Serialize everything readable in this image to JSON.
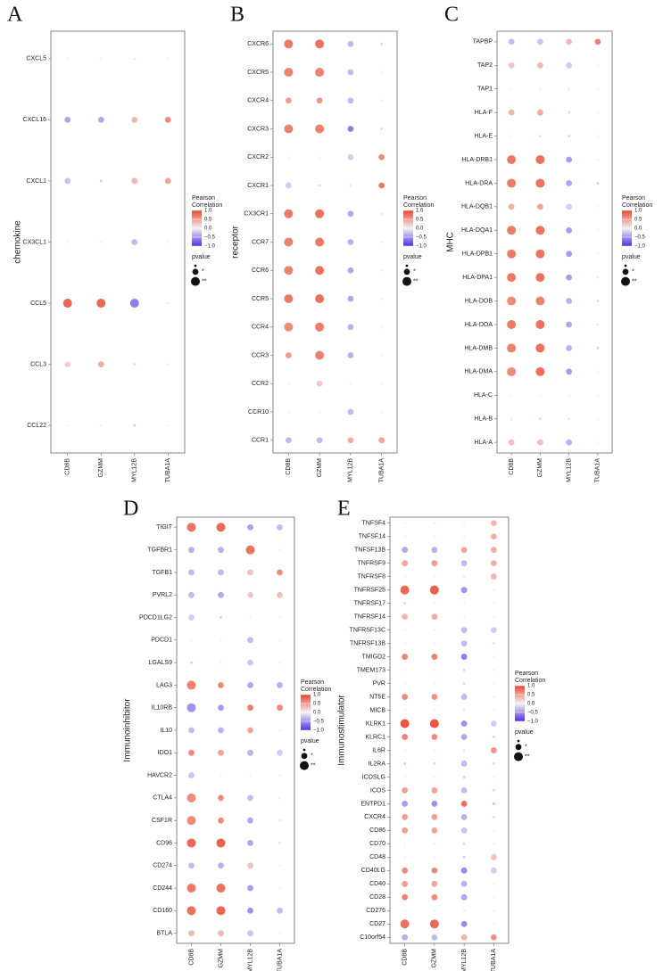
{
  "chart_data": [
    {
      "type": "dot",
      "panel_label": "A",
      "ylabel": "chemokine",
      "x": [
        "CD8B",
        "GZMM",
        "MYL12B",
        "TUBA1A"
      ],
      "categories": [
        "CXCL5",
        "CXCL16",
        "CXCL1",
        "CX3CL1",
        "CCL5",
        "CCL3",
        "CCL22"
      ],
      "values": [
        [
          0,
          0,
          0.05,
          0
        ],
        [
          -0.4,
          -0.4,
          0.35,
          0.6
        ],
        [
          -0.25,
          -0.2,
          0.35,
          0.45
        ],
        [
          0,
          0,
          -0.3,
          0
        ],
        [
          0.8,
          0.8,
          -0.6,
          -0.05
        ],
        [
          0.2,
          0.4,
          -0.15,
          -0.05
        ],
        [
          0,
          0,
          -0.2,
          0
        ]
      ],
      "sizes": [
        [
          0,
          0,
          0,
          0
        ],
        [
          1,
          1,
          1,
          1
        ],
        [
          1,
          0,
          1,
          1
        ],
        [
          0,
          0,
          1,
          0
        ],
        [
          2,
          2,
          2,
          0
        ],
        [
          1,
          1,
          0,
          0
        ],
        [
          0,
          0,
          0,
          0
        ]
      ]
    },
    {
      "type": "dot",
      "panel_label": "B",
      "ylabel": "receptor",
      "x": [
        "CD8B",
        "GZMM",
        "MYL12B",
        "TUBA1A"
      ],
      "categories": [
        "CXCR6",
        "CXCR5",
        "CXCR4",
        "CXCR3",
        "CXCR2",
        "CXCR1",
        "CX3CR1",
        "CCR7",
        "CCR6",
        "CCR5",
        "CCR4",
        "CCR3",
        "CCR2",
        "CCR10",
        "CCR1"
      ],
      "values": [
        [
          0.7,
          0.75,
          -0.3,
          -0.15
        ],
        [
          0.65,
          0.65,
          -0.3,
          0
        ],
        [
          0.5,
          0.55,
          -0.3,
          -0.05
        ],
        [
          0.65,
          0.65,
          -0.6,
          -0.15
        ],
        [
          0,
          0,
          -0.2,
          0.6
        ],
        [
          -0.2,
          -0.15,
          -0.05,
          0.7
        ],
        [
          0.7,
          0.75,
          -0.4,
          -0.05
        ],
        [
          0.65,
          0.7,
          -0.35,
          -0.05
        ],
        [
          0.65,
          0.75,
          -0.4,
          -0.05
        ],
        [
          0.7,
          0.75,
          -0.4,
          -0.05
        ],
        [
          0.6,
          0.7,
          -0.35,
          0
        ],
        [
          0.5,
          0.65,
          -0.35,
          0
        ],
        [
          0,
          0.25,
          0,
          0
        ],
        [
          0,
          0,
          -0.3,
          0
        ],
        [
          -0.3,
          -0.3,
          0.4,
          0.45
        ]
      ],
      "sizes": [
        [
          2,
          2,
          1,
          0
        ],
        [
          2,
          2,
          1,
          0
        ],
        [
          1,
          1,
          1,
          0
        ],
        [
          2,
          2,
          1,
          0
        ],
        [
          0,
          0,
          1,
          1
        ],
        [
          1,
          0,
          0,
          1
        ],
        [
          2,
          2,
          1,
          0
        ],
        [
          2,
          2,
          1,
          0
        ],
        [
          2,
          2,
          1,
          0
        ],
        [
          2,
          2,
          1,
          0
        ],
        [
          2,
          2,
          1,
          0
        ],
        [
          1,
          2,
          1,
          0
        ],
        [
          0,
          1,
          0,
          0
        ],
        [
          0,
          0,
          1,
          0
        ],
        [
          1,
          1,
          1,
          1
        ]
      ]
    },
    {
      "type": "dot",
      "panel_label": "C",
      "ylabel": "MHC",
      "x": [
        "CD8B",
        "GZMM",
        "MYL12B",
        "TUBA1A"
      ],
      "categories": [
        "TAPBP",
        "TAP2",
        "TAP1",
        "HLA-F",
        "HLA-E",
        "HLA-DRB1",
        "HLA-DRA",
        "HLA-DQB1",
        "HLA-DQA1",
        "HLA-DPB1",
        "HLA-DPA1",
        "HLA-DOB",
        "HLA-DOA",
        "HLA-DMB",
        "HLA-DMA",
        "HLA-C",
        "HLA-B",
        "HLA-A"
      ],
      "values": [
        [
          -0.3,
          -0.25,
          0.35,
          0.65
        ],
        [
          0.25,
          0.35,
          -0.2,
          0
        ],
        [
          0,
          0,
          0.05,
          0
        ],
        [
          0.35,
          0.4,
          -0.15,
          0
        ],
        [
          0,
          0.15,
          -0.15,
          0
        ],
        [
          0.7,
          0.75,
          -0.45,
          0
        ],
        [
          0.7,
          0.75,
          -0.4,
          -0.2
        ],
        [
          0.4,
          0.45,
          -0.2,
          0
        ],
        [
          0.7,
          0.75,
          -0.45,
          0
        ],
        [
          0.7,
          0.75,
          -0.45,
          0
        ],
        [
          0.7,
          0.75,
          -0.45,
          -0.05
        ],
        [
          0.6,
          0.65,
          -0.35,
          -0.15
        ],
        [
          0.7,
          0.75,
          -0.4,
          -0.05
        ],
        [
          0.65,
          0.75,
          -0.35,
          -0.2
        ],
        [
          0.6,
          0.75,
          -0.45,
          0
        ],
        [
          0,
          0,
          0,
          0
        ],
        [
          -0.05,
          0.2,
          -0.1,
          0
        ],
        [
          0.3,
          0.3,
          -0.35,
          0
        ]
      ],
      "sizes": [
        [
          1,
          1,
          1,
          1
        ],
        [
          1,
          1,
          1,
          0
        ],
        [
          0,
          0,
          0,
          0
        ],
        [
          1,
          1,
          0,
          0
        ],
        [
          0,
          0,
          0,
          0
        ],
        [
          2,
          2,
          1,
          0
        ],
        [
          2,
          2,
          1,
          0
        ],
        [
          1,
          1,
          1,
          0
        ],
        [
          2,
          2,
          1,
          0
        ],
        [
          2,
          2,
          1,
          0
        ],
        [
          2,
          2,
          1,
          0
        ],
        [
          2,
          2,
          1,
          0
        ],
        [
          2,
          2,
          1,
          0
        ],
        [
          2,
          2,
          1,
          0
        ],
        [
          2,
          2,
          1,
          0
        ],
        [
          0,
          0,
          0,
          0
        ],
        [
          0,
          0,
          0,
          0
        ],
        [
          1,
          1,
          1,
          0
        ]
      ]
    },
    {
      "type": "dot",
      "panel_label": "D",
      "ylabel": "Immunoinhibitor",
      "x": [
        "CD8B",
        "GZMM",
        "MYL12B",
        "TUBA1A"
      ],
      "categories": [
        "TIGIT",
        "TGFBR1",
        "TGFB1",
        "PVRL2",
        "PDCD1LG2",
        "PDCD1",
        "LGALS9",
        "LAG3",
        "IL10RB",
        "IL10",
        "IDO1",
        "HAVCR2",
        "CTLA4",
        "CSF1R",
        "CD96",
        "CD274",
        "CD244",
        "CD160",
        "BTLA"
      ],
      "values": [
        [
          0.75,
          0.8,
          -0.45,
          -0.3
        ],
        [
          -0.35,
          -0.35,
          0.75,
          0
        ],
        [
          -0.3,
          -0.3,
          0.3,
          0.6
        ],
        [
          -0.3,
          -0.4,
          0.25,
          0.3
        ],
        [
          -0.2,
          -0.2,
          0,
          0
        ],
        [
          0,
          0,
          -0.3,
          0
        ],
        [
          -0.2,
          0,
          -0.25,
          0
        ],
        [
          0.65,
          0.6,
          -0.4,
          -0.35
        ],
        [
          -0.5,
          -0.45,
          0.7,
          0.6
        ],
        [
          -0.3,
          -0.35,
          0.45,
          0
        ],
        [
          0.6,
          0.45,
          -0.35,
          -0.2
        ],
        [
          -0.25,
          0,
          0,
          0
        ],
        [
          0.6,
          0.6,
          -0.3,
          -0.05
        ],
        [
          0.6,
          0.6,
          -0.4,
          -0.05
        ],
        [
          0.8,
          0.85,
          -0.4,
          -0.05
        ],
        [
          -0.3,
          -0.35,
          0.3,
          0
        ],
        [
          0.7,
          0.75,
          -0.45,
          0
        ],
        [
          0.75,
          0.8,
          -0.5,
          -0.3
        ],
        [
          0.35,
          0.35,
          -0.25,
          0
        ]
      ],
      "sizes": [
        [
          2,
          2,
          1,
          1
        ],
        [
          1,
          1,
          2,
          0
        ],
        [
          1,
          1,
          1,
          1
        ],
        [
          1,
          1,
          1,
          1
        ],
        [
          1,
          0,
          0,
          0
        ],
        [
          0,
          0,
          1,
          0
        ],
        [
          0,
          0,
          1,
          0
        ],
        [
          2,
          1,
          1,
          1
        ],
        [
          2,
          1,
          1,
          1
        ],
        [
          1,
          1,
          1,
          0
        ],
        [
          1,
          1,
          1,
          1
        ],
        [
          1,
          0,
          0,
          0
        ],
        [
          2,
          1,
          1,
          0
        ],
        [
          2,
          1,
          1,
          0
        ],
        [
          2,
          2,
          1,
          0
        ],
        [
          1,
          1,
          1,
          0
        ],
        [
          2,
          2,
          1,
          0
        ],
        [
          2,
          2,
          1,
          1
        ],
        [
          1,
          1,
          1,
          0
        ]
      ]
    },
    {
      "type": "dot",
      "panel_label": "E",
      "ylabel": "Immunostimulator",
      "x": [
        "CD8B",
        "GZMM",
        "MYL12B",
        "TUBA1A"
      ],
      "categories": [
        "TNFSF4",
        "TNFSF14",
        "TNFSF13B",
        "TNFRSF9",
        "TNFRSF8",
        "TNFRSF25",
        "TNFRSF17",
        "TNFRSF14",
        "TNFRSF13C",
        "TNFRSF13B",
        "TMIGD2",
        "TMEM173",
        "PVR",
        "NT5E",
        "MICB",
        "KLRK1",
        "KLRC1",
        "IL6R",
        "IL2RA",
        "ICOSLG",
        "ICOS",
        "ENTPD1",
        "CXCR4",
        "CD86",
        "CD70",
        "CD48",
        "CD40LG",
        "CD40",
        "CD28",
        "CD276",
        "CD27",
        "C10orf54"
      ],
      "values": [
        [
          0,
          0,
          0,
          0.35
        ],
        [
          0,
          0,
          0,
          0.4
        ],
        [
          -0.4,
          -0.35,
          0.45,
          0.4
        ],
        [
          0.45,
          0.5,
          -0.3,
          0.4
        ],
        [
          0,
          0,
          -0.05,
          0.35
        ],
        [
          0.8,
          0.85,
          -0.5,
          0
        ],
        [
          0.2,
          0,
          0,
          0
        ],
        [
          0.35,
          0.4,
          0,
          0
        ],
        [
          0,
          0,
          -0.3,
          -0.2
        ],
        [
          0,
          0,
          -0.3,
          -0.1
        ],
        [
          0.65,
          0.65,
          -0.6,
          0
        ],
        [
          0,
          0,
          -0.15,
          0
        ],
        [
          0,
          0,
          -0.15,
          0
        ],
        [
          0.6,
          0.55,
          -0.3,
          0
        ],
        [
          0,
          0,
          -0.1,
          0
        ],
        [
          0.9,
          0.9,
          -0.5,
          -0.2
        ],
        [
          0.65,
          0.6,
          -0.4,
          -0.15
        ],
        [
          0,
          0,
          0.1,
          0.55
        ],
        [
          0.25,
          0.2,
          -0.3,
          -0.15
        ],
        [
          0,
          0,
          -0.2,
          0
        ],
        [
          0.5,
          0.45,
          -0.3,
          -0.15
        ],
        [
          -0.45,
          -0.5,
          0.75,
          0.4
        ],
        [
          0.5,
          0.5,
          -0.35,
          -0.15
        ],
        [
          0.5,
          0.45,
          -0.25,
          0
        ],
        [
          0,
          0,
          -0.15,
          0
        ],
        [
          0,
          0,
          -0.2,
          0.3
        ],
        [
          0.6,
          0.6,
          -0.55,
          -0.2
        ],
        [
          0.5,
          0.45,
          -0.35,
          0
        ],
        [
          0.65,
          0.6,
          -0.4,
          0
        ],
        [
          0,
          0,
          0.05,
          0
        ],
        [
          0.75,
          0.8,
          -0.55,
          0
        ],
        [
          -0.35,
          -0.3,
          0.35,
          0.55
        ]
      ],
      "sizes": [
        [
          0,
          0,
          0,
          1
        ],
        [
          0,
          0,
          0,
          1
        ],
        [
          1,
          1,
          1,
          1
        ],
        [
          1,
          1,
          1,
          1
        ],
        [
          0,
          0,
          0,
          1
        ],
        [
          2,
          2,
          1,
          0
        ],
        [
          0,
          0,
          0,
          0
        ],
        [
          1,
          1,
          0,
          0
        ],
        [
          0,
          0,
          1,
          1
        ],
        [
          0,
          0,
          1,
          0
        ],
        [
          1,
          1,
          1,
          0
        ],
        [
          0,
          0,
          0,
          0
        ],
        [
          0,
          0,
          0,
          0
        ],
        [
          1,
          1,
          1,
          0
        ],
        [
          0,
          0,
          0,
          0
        ],
        [
          2,
          2,
          1,
          1
        ],
        [
          1,
          1,
          1,
          0
        ],
        [
          0,
          0,
          0,
          1
        ],
        [
          0,
          0,
          1,
          0
        ],
        [
          0,
          0,
          0,
          0
        ],
        [
          1,
          1,
          1,
          0
        ],
        [
          1,
          1,
          1,
          0
        ],
        [
          1,
          1,
          1,
          0
        ],
        [
          1,
          1,
          1,
          0
        ],
        [
          0,
          0,
          0,
          0
        ],
        [
          0,
          0,
          0,
          1
        ],
        [
          1,
          1,
          1,
          1
        ],
        [
          1,
          1,
          1,
          0
        ],
        [
          1,
          1,
          1,
          0
        ],
        [
          0,
          0,
          0,
          0
        ],
        [
          2,
          2,
          1,
          0
        ],
        [
          1,
          1,
          1,
          1
        ]
      ]
    }
  ],
  "legend": {
    "color_title_lines": [
      "Pearson",
      "Correlation"
    ],
    "clim": [
      -1,
      1
    ],
    "colors": [
      "#4f2fe2",
      "#f6f2f6",
      "#e8462c"
    ],
    "ticks": [
      {
        "value": 1,
        "label": "1.0"
      },
      {
        "value": 0.5,
        "label": "0.5"
      },
      {
        "value": 0,
        "label": "0.0"
      },
      {
        "value": -0.5,
        "label": "−0.5"
      },
      {
        "value": -1,
        "label": "−1.0"
      }
    ],
    "size_title": "pvalue",
    "size_levels": [
      0,
      1,
      2
    ],
    "size_labels": [
      null,
      "*",
      "**"
    ]
  }
}
